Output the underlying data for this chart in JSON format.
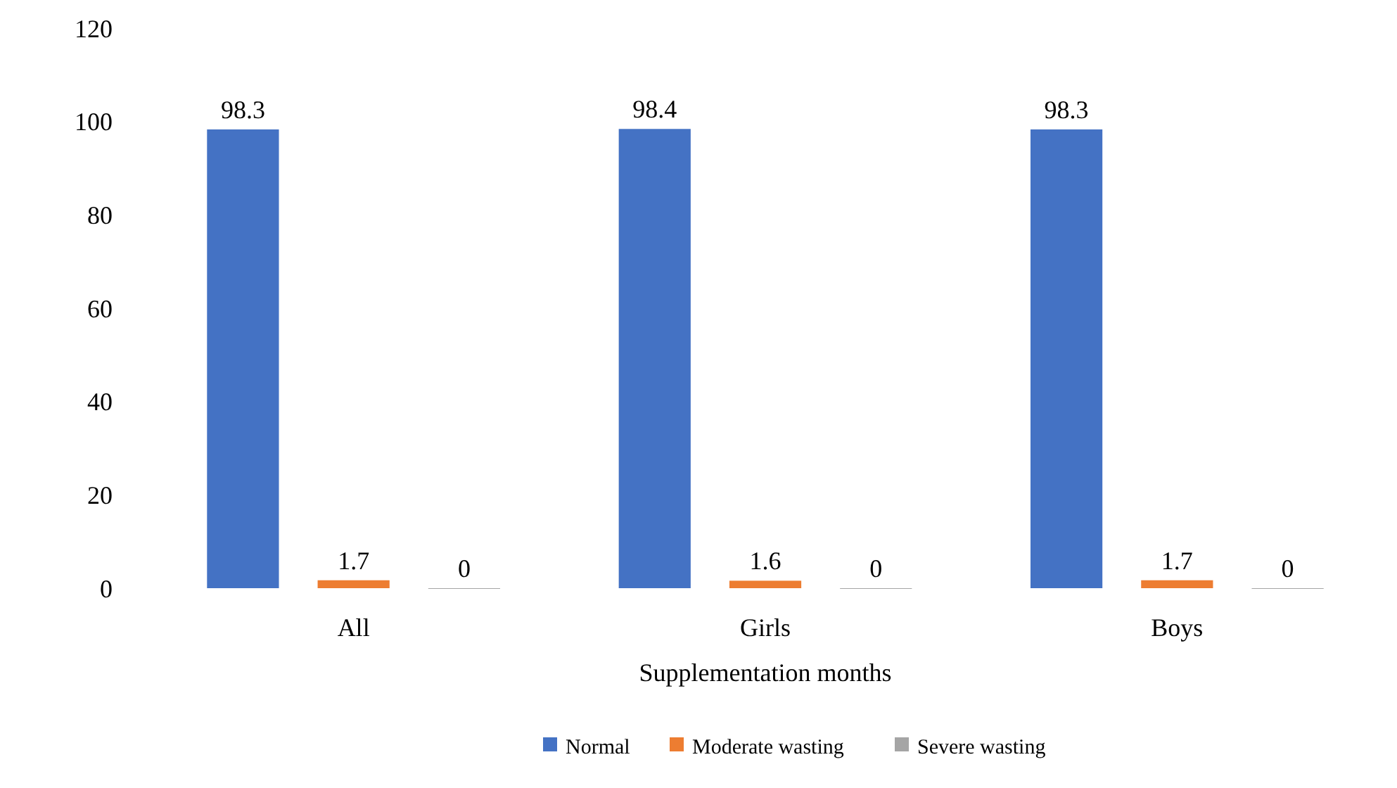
{
  "chart_data": {
    "type": "bar",
    "xlabel": "Supplementation months",
    "categories": [
      "All",
      "Girls",
      "Boys"
    ],
    "series": [
      {
        "name": "Normal",
        "color": "#4472c4",
        "values": [
          98.3,
          98.4,
          98.3
        ]
      },
      {
        "name": "Moderate wasting",
        "color": "#ed7d31",
        "values": [
          1.7,
          1.6,
          1.7
        ]
      },
      {
        "name": "Severe wasting",
        "color": "#a5a5a5",
        "values": [
          0,
          0,
          0
        ]
      }
    ],
    "ylim": [
      0,
      120
    ],
    "yticks": [
      0,
      20,
      40,
      60,
      80,
      100,
      120
    ],
    "data_labels": true,
    "legend": "bottom",
    "grid": false
  }
}
